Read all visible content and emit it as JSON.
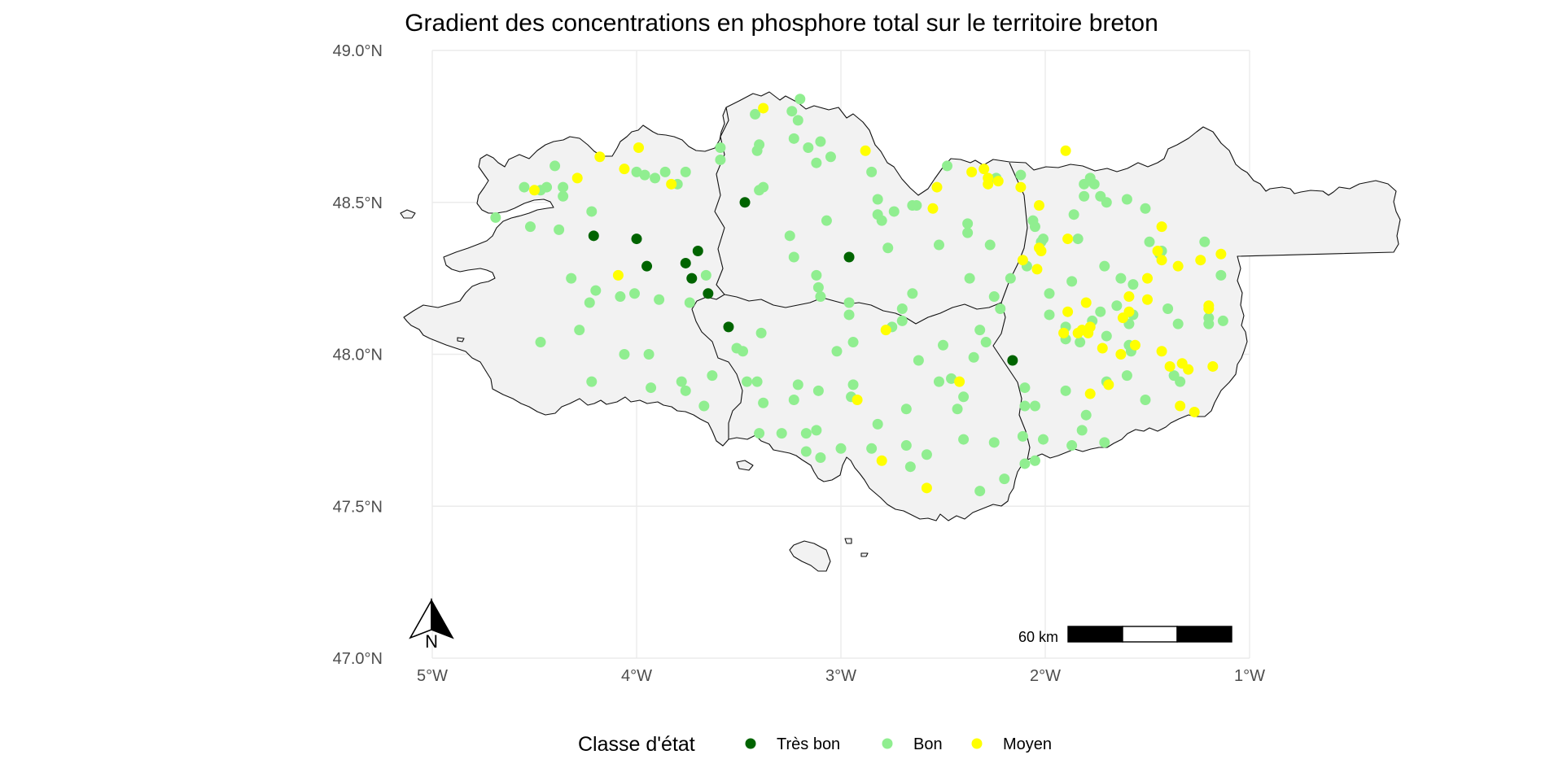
{
  "chart_data": {
    "type": "scatter",
    "title": "Gradient des concentrations en phosphore total sur le territoire breton",
    "x_ticks": [
      {
        "value": -5,
        "label": "5°W"
      },
      {
        "value": -4,
        "label": "4°W"
      },
      {
        "value": -3,
        "label": "3°W"
      },
      {
        "value": -2,
        "label": "2°W"
      },
      {
        "value": -1,
        "label": "1°W"
      }
    ],
    "y_ticks": [
      {
        "value": 49.0,
        "label": "49.0°N"
      },
      {
        "value": 48.5,
        "label": "48.5°N"
      },
      {
        "value": 48.0,
        "label": "48.0°N"
      },
      {
        "value": 47.5,
        "label": "47.5°N"
      },
      {
        "value": 47.0,
        "label": "47.0°N"
      }
    ],
    "xlim": [
      -5.2,
      -1.0
    ],
    "ylim": [
      47.0,
      49.0
    ],
    "grid": true,
    "legend_position": "bottom",
    "legend_title": "Classe d'état",
    "colors": {
      "Très bon": "#006400",
      "Bon": "#90ee90",
      "Moyen": "#ffff00"
    },
    "series": [
      {
        "name": "Très bon",
        "points": [
          [
            -4.21,
            48.39
          ],
          [
            -4.0,
            48.38
          ],
          [
            -3.95,
            48.29
          ],
          [
            -3.76,
            48.3
          ],
          [
            -3.73,
            48.25
          ],
          [
            -3.7,
            48.34
          ],
          [
            -3.65,
            48.2
          ],
          [
            -3.55,
            48.09
          ],
          [
            -3.47,
            48.5
          ],
          [
            -2.96,
            48.32
          ],
          [
            -2.16,
            47.98
          ]
        ]
      },
      {
        "name": "Bon",
        "points": [
          [
            -4.55,
            48.55
          ],
          [
            -4.47,
            48.54
          ],
          [
            -4.44,
            48.55
          ],
          [
            -4.4,
            48.62
          ],
          [
            -4.36,
            48.55
          ],
          [
            -4.36,
            48.52
          ],
          [
            -4.69,
            48.45
          ],
          [
            -4.52,
            48.42
          ],
          [
            -4.38,
            48.41
          ],
          [
            -4.22,
            48.47
          ],
          [
            -4.32,
            48.25
          ],
          [
            -4.23,
            48.17
          ],
          [
            -4.2,
            48.21
          ],
          [
            -4.08,
            48.19
          ],
          [
            -4.01,
            48.2
          ],
          [
            -4.0,
            48.6
          ],
          [
            -3.96,
            48.59
          ],
          [
            -3.91,
            48.58
          ],
          [
            -3.86,
            48.6
          ],
          [
            -3.8,
            48.56
          ],
          [
            -3.76,
            48.6
          ],
          [
            -3.89,
            48.18
          ],
          [
            -3.74,
            48.17
          ],
          [
            -3.66,
            48.26
          ],
          [
            -4.47,
            48.04
          ],
          [
            -4.28,
            48.08
          ],
          [
            -4.22,
            47.91
          ],
          [
            -4.06,
            48.0
          ],
          [
            -3.94,
            48.0
          ],
          [
            -3.93,
            47.89
          ],
          [
            -3.78,
            47.91
          ],
          [
            -3.76,
            47.88
          ],
          [
            -3.67,
            47.83
          ],
          [
            -3.63,
            47.93
          ],
          [
            -3.51,
            48.02
          ],
          [
            -3.48,
            48.01
          ],
          [
            -3.46,
            47.91
          ],
          [
            -3.41,
            47.91
          ],
          [
            -3.39,
            48.07
          ],
          [
            -3.38,
            47.84
          ],
          [
            -3.4,
            47.74
          ],
          [
            -3.29,
            47.74
          ],
          [
            -3.42,
            48.79
          ],
          [
            -3.4,
            48.69
          ],
          [
            -3.41,
            48.67
          ],
          [
            -3.24,
            48.8
          ],
          [
            -3.2,
            48.84
          ],
          [
            -3.1,
            48.7
          ],
          [
            -3.16,
            48.68
          ],
          [
            -3.05,
            48.65
          ],
          [
            -3.12,
            48.63
          ],
          [
            -3.07,
            48.44
          ],
          [
            -3.38,
            48.55
          ],
          [
            -3.4,
            48.54
          ],
          [
            -3.59,
            48.68
          ],
          [
            -3.59,
            48.64
          ],
          [
            -3.21,
            48.77
          ],
          [
            -3.23,
            48.71
          ],
          [
            -3.25,
            48.39
          ],
          [
            -3.23,
            48.32
          ],
          [
            -3.12,
            48.26
          ],
          [
            -3.11,
            48.22
          ],
          [
            -3.1,
            48.19
          ],
          [
            -2.96,
            48.17
          ],
          [
            -2.85,
            48.6
          ],
          [
            -2.82,
            48.51
          ],
          [
            -2.82,
            48.46
          ],
          [
            -2.8,
            48.44
          ],
          [
            -2.74,
            48.47
          ],
          [
            -2.77,
            48.35
          ],
          [
            -2.65,
            48.49
          ],
          [
            -2.63,
            48.49
          ],
          [
            -2.52,
            48.36
          ],
          [
            -2.48,
            48.62
          ],
          [
            -2.38,
            48.43
          ],
          [
            -2.38,
            48.4
          ],
          [
            -2.37,
            48.25
          ],
          [
            -2.27,
            48.36
          ],
          [
            -2.24,
            48.58
          ],
          [
            -2.25,
            48.19
          ],
          [
            -2.12,
            48.59
          ],
          [
            -2.06,
            48.44
          ],
          [
            -2.05,
            48.42
          ],
          [
            -2.01,
            48.38
          ],
          [
            -2.02,
            48.37
          ],
          [
            -2.09,
            48.29
          ],
          [
            -2.17,
            48.25
          ],
          [
            -3.23,
            47.85
          ],
          [
            -3.21,
            47.9
          ],
          [
            -3.17,
            47.74
          ],
          [
            -3.17,
            47.68
          ],
          [
            -3.11,
            47.88
          ],
          [
            -3.12,
            47.75
          ],
          [
            -2.94,
            47.9
          ],
          [
            -2.95,
            47.86
          ],
          [
            -2.94,
            48.04
          ],
          [
            -2.96,
            48.13
          ],
          [
            -3.02,
            48.01
          ],
          [
            -2.85,
            47.69
          ],
          [
            -2.82,
            47.77
          ],
          [
            -2.75,
            48.09
          ],
          [
            -2.7,
            48.15
          ],
          [
            -2.7,
            48.11
          ],
          [
            -2.65,
            48.2
          ],
          [
            -2.62,
            47.98
          ],
          [
            -2.52,
            47.91
          ],
          [
            -2.5,
            48.03
          ],
          [
            -2.46,
            47.92
          ],
          [
            -2.43,
            47.82
          ],
          [
            -2.4,
            47.72
          ],
          [
            -2.4,
            47.86
          ],
          [
            -2.35,
            47.99
          ],
          [
            -2.32,
            48.08
          ],
          [
            -2.29,
            48.04
          ],
          [
            -2.22,
            48.15
          ],
          [
            -2.2,
            47.59
          ],
          [
            -2.25,
            47.71
          ],
          [
            -2.32,
            47.55
          ],
          [
            -2.58,
            47.67
          ],
          [
            -2.68,
            47.7
          ],
          [
            -2.66,
            47.63
          ],
          [
            -2.68,
            47.82
          ],
          [
            -3.0,
            47.69
          ],
          [
            -3.1,
            47.66
          ],
          [
            -2.1,
            47.89
          ],
          [
            -2.11,
            47.73
          ],
          [
            -2.1,
            47.64
          ],
          [
            -2.1,
            47.83
          ],
          [
            -2.05,
            47.83
          ],
          [
            -2.05,
            47.65
          ],
          [
            -2.01,
            47.72
          ],
          [
            -1.98,
            48.2
          ],
          [
            -1.98,
            48.13
          ],
          [
            -1.84,
            48.38
          ],
          [
            -1.9,
            48.05
          ],
          [
            -1.83,
            48.04
          ],
          [
            -1.77,
            48.11
          ],
          [
            -1.73,
            48.14
          ],
          [
            -1.71,
            48.29
          ],
          [
            -1.7,
            48.06
          ],
          [
            -1.65,
            48.16
          ],
          [
            -1.63,
            48.25
          ],
          [
            -1.73,
            48.52
          ],
          [
            -1.76,
            48.56
          ],
          [
            -1.81,
            48.52
          ],
          [
            -1.78,
            48.58
          ],
          [
            -1.6,
            48.51
          ],
          [
            -1.7,
            48.5
          ],
          [
            -1.59,
            48.03
          ],
          [
            -1.58,
            48.01
          ],
          [
            -1.59,
            48.1
          ],
          [
            -1.57,
            48.13
          ],
          [
            -1.57,
            48.23
          ],
          [
            -1.51,
            48.48
          ],
          [
            -1.49,
            48.37
          ],
          [
            -1.44,
            48.33
          ],
          [
            -1.4,
            48.15
          ],
          [
            -1.35,
            48.1
          ],
          [
            -1.37,
            47.93
          ],
          [
            -1.34,
            47.91
          ],
          [
            -1.51,
            47.85
          ],
          [
            -1.6,
            47.93
          ],
          [
            -1.7,
            47.91
          ],
          [
            -1.71,
            47.71
          ],
          [
            -1.87,
            47.7
          ],
          [
            -1.82,
            47.75
          ],
          [
            -1.8,
            47.8
          ],
          [
            -1.9,
            47.88
          ],
          [
            -1.22,
            48.37
          ],
          [
            -1.2,
            48.1
          ],
          [
            -1.2,
            48.12
          ],
          [
            -1.14,
            48.26
          ],
          [
            -1.13,
            48.11
          ],
          [
            -1.87,
            48.24
          ],
          [
            -1.9,
            48.09
          ],
          [
            -1.43,
            48.34
          ],
          [
            -1.86,
            48.46
          ],
          [
            -1.81,
            48.56
          ]
        ]
      },
      {
        "name": "Moyen",
        "points": [
          [
            -4.5,
            48.54
          ],
          [
            -4.18,
            48.65
          ],
          [
            -4.29,
            48.58
          ],
          [
            -4.06,
            48.61
          ],
          [
            -3.99,
            48.68
          ],
          [
            -3.83,
            48.56
          ],
          [
            -4.09,
            48.26
          ],
          [
            -3.38,
            48.81
          ],
          [
            -2.88,
            48.67
          ],
          [
            -2.53,
            48.55
          ],
          [
            -2.55,
            48.48
          ],
          [
            -2.36,
            48.6
          ],
          [
            -2.3,
            48.61
          ],
          [
            -2.28,
            48.58
          ],
          [
            -2.28,
            48.56
          ],
          [
            -2.23,
            48.57
          ],
          [
            -2.12,
            48.55
          ],
          [
            -2.03,
            48.49
          ],
          [
            -2.03,
            48.35
          ],
          [
            -2.02,
            48.34
          ],
          [
            -2.04,
            48.28
          ],
          [
            -2.11,
            48.31
          ],
          [
            -1.9,
            48.67
          ],
          [
            -1.89,
            48.38
          ],
          [
            -1.89,
            48.14
          ],
          [
            -1.91,
            48.07
          ],
          [
            -1.84,
            48.07
          ],
          [
            -1.8,
            48.17
          ],
          [
            -1.79,
            48.07
          ],
          [
            -1.82,
            48.08
          ],
          [
            -1.78,
            48.09
          ],
          [
            -1.72,
            48.02
          ],
          [
            -1.69,
            47.9
          ],
          [
            -1.78,
            47.87
          ],
          [
            -1.63,
            48.0
          ],
          [
            -1.59,
            48.14
          ],
          [
            -1.59,
            48.19
          ],
          [
            -1.62,
            48.12
          ],
          [
            -1.56,
            48.03
          ],
          [
            -1.5,
            48.18
          ],
          [
            -1.5,
            48.25
          ],
          [
            -1.45,
            48.34
          ],
          [
            -1.43,
            48.42
          ],
          [
            -1.43,
            48.31
          ],
          [
            -1.39,
            47.96
          ],
          [
            -1.43,
            48.01
          ],
          [
            -1.35,
            48.29
          ],
          [
            -1.33,
            47.97
          ],
          [
            -1.3,
            47.95
          ],
          [
            -1.27,
            47.81
          ],
          [
            -1.34,
            47.83
          ],
          [
            -1.24,
            48.31
          ],
          [
            -1.2,
            48.16
          ],
          [
            -1.2,
            48.15
          ],
          [
            -1.18,
            47.96
          ],
          [
            -1.14,
            48.33
          ],
          [
            -2.92,
            47.85
          ],
          [
            -2.78,
            48.08
          ],
          [
            -2.58,
            47.56
          ],
          [
            -2.8,
            47.65
          ],
          [
            -2.42,
            47.91
          ]
        ]
      }
    ]
  },
  "scale_bar": {
    "label": "60 km"
  },
  "north_arrow": {
    "label": "N"
  }
}
